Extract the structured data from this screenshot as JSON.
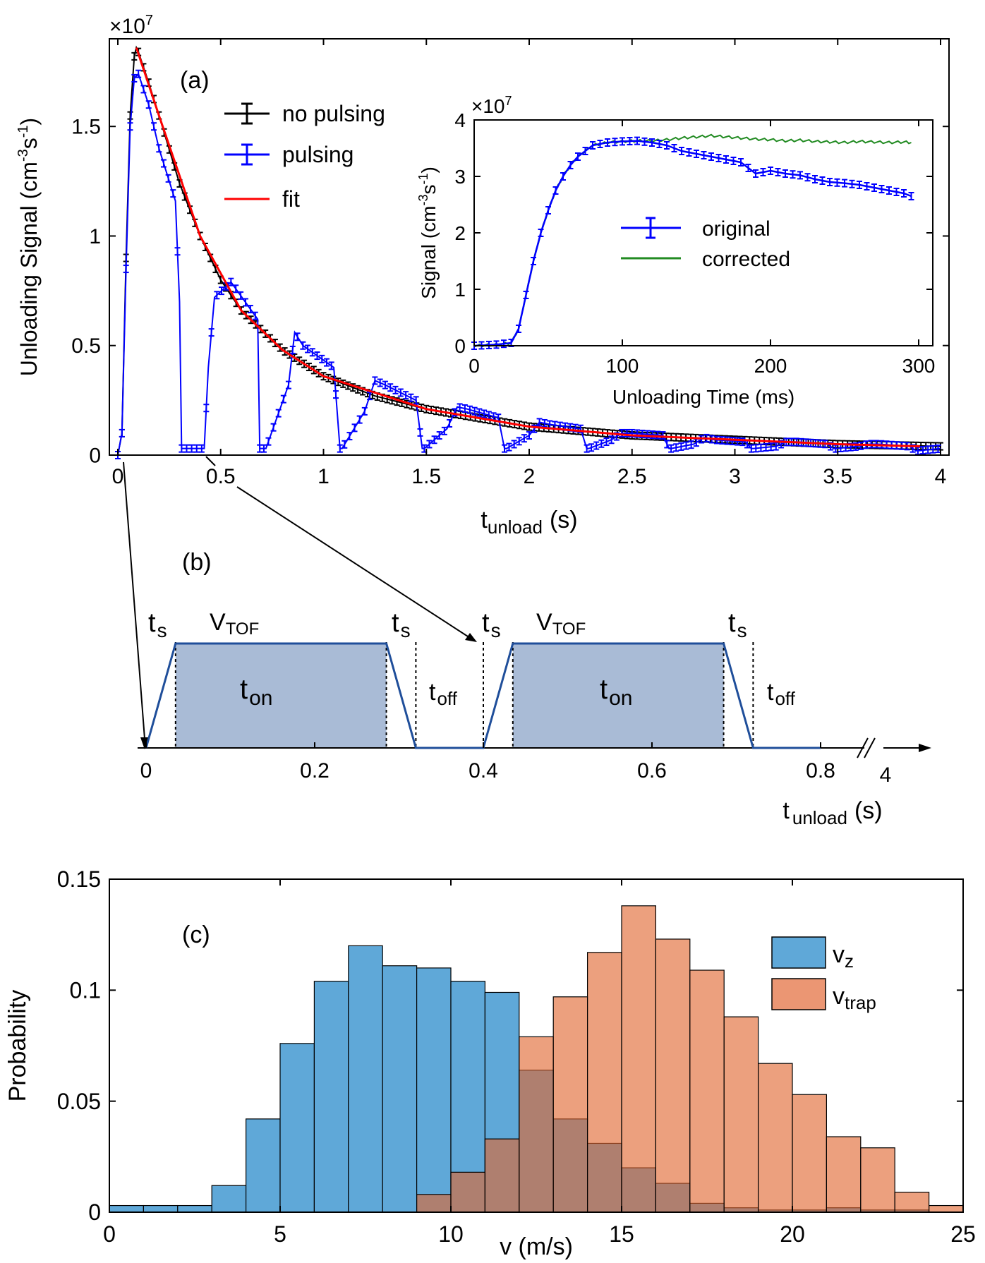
{
  "chart_data": [
    {
      "panel": "(a)",
      "type": "line",
      "xlabel": "t",
      "xlabel_sub": "unload",
      "xlabel_unit": "(s)",
      "ylabel": "Unloading Signal (cm",
      "ylabel_exp1": "-3",
      "ylabel_mid": "s",
      "ylabel_exp2": "-1",
      "ylabel_end": ")",
      "y_multiplier": "×10",
      "y_multiplier_exp": "7",
      "xlim": [
        0,
        4
      ],
      "ylim": [
        0,
        1.9
      ],
      "xticks": [
        0,
        0.5,
        1,
        1.5,
        2,
        2.5,
        3,
        3.5,
        4
      ],
      "xtick_labels": [
        "0",
        "0.5",
        "1",
        "1.5",
        "2",
        "2.5",
        "3",
        "3.5",
        "4"
      ],
      "yticks": [
        0,
        0.5,
        1,
        1.5
      ],
      "ytick_labels": [
        "0",
        "0.5",
        "1",
        "1.5"
      ],
      "legend": [
        {
          "label": "no pulsing",
          "color": "#000000"
        },
        {
          "label": "pulsing",
          "color": "#0000ff"
        },
        {
          "label": "fit",
          "color": "#ff0000"
        }
      ],
      "series": [
        {
          "name": "no pulsing",
          "color": "#000000",
          "x": [
            0,
            0.02,
            0.04,
            0.06,
            0.08,
            0.09,
            0.1,
            0.15,
            0.2,
            0.3,
            0.4,
            0.5,
            0.6,
            0.8,
            1.0,
            1.25,
            1.5,
            2.0,
            2.5,
            3.0,
            3.5,
            4.0
          ],
          "y": [
            0,
            0.1,
            0.9,
            1.55,
            1.82,
            1.86,
            1.84,
            1.7,
            1.55,
            1.24,
            1.0,
            0.8,
            0.66,
            0.48,
            0.36,
            0.27,
            0.21,
            0.13,
            0.09,
            0.07,
            0.05,
            0.04
          ]
        },
        {
          "name": "pulsing",
          "color": "#0000ff",
          "x": [
            0,
            0.02,
            0.04,
            0.06,
            0.08,
            0.1,
            0.15,
            0.2,
            0.28,
            0.3,
            0.31,
            0.42,
            0.44,
            0.47,
            0.55,
            0.68,
            0.69,
            0.72,
            0.83,
            0.86,
            0.9,
            1.05,
            1.08,
            1.09,
            1.2,
            1.25,
            1.3,
            1.45,
            1.48,
            1.49,
            1.6,
            1.65,
            1.7,
            1.85,
            1.88,
            1.89,
            2.0,
            2.05,
            2.1,
            2.25,
            2.28,
            2.29,
            2.4,
            2.45,
            2.5,
            2.65,
            2.68,
            2.69,
            2.8,
            2.85,
            2.9,
            3.05,
            3.08,
            3.09,
            3.2,
            3.25,
            3.3,
            3.45,
            3.48,
            3.49,
            3.6,
            3.65,
            3.7,
            3.85,
            3.88,
            3.89,
            4.0
          ],
          "y": [
            0,
            0.1,
            0.85,
            1.5,
            1.72,
            1.74,
            1.6,
            1.4,
            1.16,
            0.7,
            0.03,
            0.03,
            0.4,
            0.72,
            0.79,
            0.62,
            0.03,
            0.03,
            0.32,
            0.56,
            0.5,
            0.4,
            0.03,
            0.03,
            0.2,
            0.34,
            0.32,
            0.25,
            0.03,
            0.03,
            0.12,
            0.22,
            0.21,
            0.17,
            0.03,
            0.03,
            0.09,
            0.15,
            0.14,
            0.12,
            0.03,
            0.03,
            0.07,
            0.1,
            0.1,
            0.09,
            0.03,
            0.03,
            0.05,
            0.08,
            0.07,
            0.06,
            0.03,
            0.03,
            0.04,
            0.06,
            0.06,
            0.05,
            0.03,
            0.03,
            0.04,
            0.05,
            0.05,
            0.04,
            0.02,
            0.02,
            0.03
          ]
        },
        {
          "name": "fit",
          "color": "#ff0000",
          "model": "exponential decay",
          "x": [
            0.09,
            0.2,
            0.4,
            0.6,
            0.8,
            1.0,
            1.5,
            2.0,
            2.5,
            3.0,
            3.5,
            3.9
          ],
          "y": [
            1.86,
            1.55,
            1.0,
            0.66,
            0.48,
            0.36,
            0.21,
            0.13,
            0.09,
            0.07,
            0.05,
            0.04
          ]
        }
      ],
      "annotations": [
        {
          "text": "(a)"
        }
      ],
      "inset": {
        "type": "line",
        "xlabel": "Unloading Time (ms)",
        "ylabel": "Signal (cm",
        "ylabel_exp1": "-3",
        "ylabel_mid": "s",
        "ylabel_exp2": "-1",
        "ylabel_end": ")",
        "y_multiplier": "×10",
        "y_multiplier_exp": "7",
        "xlim": [
          0,
          300
        ],
        "ylim": [
          0,
          4
        ],
        "xticks": [
          0,
          100,
          200,
          300
        ],
        "xtick_labels": [
          "0",
          "100",
          "200",
          "300"
        ],
        "yticks": [
          0,
          1,
          2,
          3,
          4
        ],
        "ytick_labels": [
          "0",
          "1",
          "2",
          "3",
          "4"
        ],
        "legend": [
          {
            "label": "original",
            "color": "#0000ff"
          },
          {
            "label": "corrected",
            "color": "#228b22"
          }
        ],
        "series": [
          {
            "name": "original",
            "color": "#0000ff",
            "x": [
              0,
              15,
              25,
              30,
              35,
              40,
              45,
              50,
              55,
              60,
              65,
              70,
              75,
              80,
              90,
              100,
              110,
              120,
              130,
              140,
              150,
              160,
              170,
              180,
              185,
              190,
              200,
              210,
              220,
              230,
              240,
              250,
              260,
              270,
              280,
              290,
              295
            ],
            "y": [
              0,
              0.02,
              0.05,
              0.3,
              0.9,
              1.5,
              2.0,
              2.4,
              2.75,
              3.0,
              3.2,
              3.35,
              3.45,
              3.55,
              3.6,
              3.62,
              3.63,
              3.6,
              3.55,
              3.45,
              3.4,
              3.35,
              3.3,
              3.25,
              3.15,
              3.05,
              3.1,
              3.05,
              3.02,
              2.95,
              2.9,
              2.88,
              2.85,
              2.8,
              2.75,
              2.7,
              2.65
            ]
          },
          {
            "name": "corrected",
            "color": "#228b22",
            "x": [
              0,
              15,
              25,
              30,
              35,
              40,
              45,
              50,
              55,
              60,
              65,
              70,
              75,
              80,
              90,
              100,
              110,
              120,
              130,
              140,
              150,
              160,
              170,
              180,
              190,
              200,
              210,
              220,
              230,
              240,
              250,
              260,
              270,
              280,
              290,
              295
            ],
            "y": [
              0,
              0.02,
              0.05,
              0.3,
              0.9,
              1.5,
              2.0,
              2.4,
              2.75,
              3.0,
              3.2,
              3.35,
              3.45,
              3.55,
              3.6,
              3.62,
              3.63,
              3.63,
              3.65,
              3.68,
              3.7,
              3.72,
              3.7,
              3.68,
              3.66,
              3.65,
              3.63,
              3.64,
              3.62,
              3.61,
              3.6,
              3.62,
              3.61,
              3.6,
              3.61,
              3.6
            ]
          }
        ]
      }
    },
    {
      "panel": "(b)",
      "type": "diagram",
      "title": "(b)",
      "xlabel": "t",
      "xlabel_sub": "unload",
      "xlabel_unit": "(s)",
      "xticks": [
        0,
        0.2,
        0.4,
        0.6,
        0.8
      ],
      "xtick_labels": [
        "0",
        "0.2",
        "0.4",
        "0.6",
        "0.8"
      ],
      "break_tick_label": "4",
      "waveform_times": [
        0,
        0.035,
        0.285,
        0.32,
        0.4,
        0.435,
        0.685,
        0.72,
        0.8
      ],
      "waveform_levels": [
        0,
        1,
        1,
        0,
        0,
        1,
        1,
        0,
        0
      ],
      "labels": {
        "ts": "t",
        "ts_sub": "s",
        "vtof": "V",
        "vtof_sub": "TOF",
        "ton": "t",
        "ton_sub": "on",
        "toff": "t",
        "toff_sub": "off"
      },
      "pulse_fill": "#a9bbd6",
      "line_color": "#1f4e9a"
    },
    {
      "panel": "(c)",
      "type": "bar",
      "xlabel": "v (m/s)",
      "ylabel": "Probability",
      "xlim": [
        0,
        25
      ],
      "ylim": [
        0,
        0.15
      ],
      "xticks": [
        0,
        5,
        10,
        15,
        20,
        25
      ],
      "xtick_labels": [
        "0",
        "5",
        "10",
        "15",
        "20",
        "25"
      ],
      "yticks": [
        0,
        0.05,
        0.1,
        0.15
      ],
      "ytick_labels": [
        "0",
        "0.05",
        "0.1",
        "0.15"
      ],
      "bin_edges": [
        0,
        1,
        2,
        3,
        4,
        5,
        6,
        7,
        8,
        9,
        10,
        11,
        12,
        13,
        14,
        15,
        16,
        17,
        18,
        19,
        20,
        21,
        22,
        23,
        24,
        25
      ],
      "annotations": [
        {
          "text": "(c)"
        }
      ],
      "legend": [
        {
          "label": "v",
          "sub": "z",
          "color": "#5fa8d8"
        },
        {
          "label": "v",
          "sub": "trap",
          "color": "#eb9673"
        }
      ],
      "series": [
        {
          "name": "vz",
          "color": "#5fa8d8",
          "values": [
            0.003,
            0.003,
            0.003,
            0.012,
            0.042,
            0.076,
            0.104,
            0.12,
            0.111,
            0.11,
            0.104,
            0.099,
            0.064,
            0.042,
            0.031,
            0.02,
            0.013,
            0.004,
            0.002,
            0.001,
            0.001,
            0.002,
            0.001,
            0.001,
            0.0
          ]
        },
        {
          "name": "vtrap",
          "color": "#eb9673",
          "values": [
            0.0,
            0.0,
            0.0,
            0.0,
            0.0,
            0.0,
            0.0,
            0.0,
            0.0,
            0.008,
            0.018,
            0.033,
            0.079,
            0.097,
            0.117,
            0.138,
            0.123,
            0.109,
            0.088,
            0.067,
            0.053,
            0.034,
            0.029,
            0.009,
            0.003
          ]
        }
      ]
    }
  ]
}
